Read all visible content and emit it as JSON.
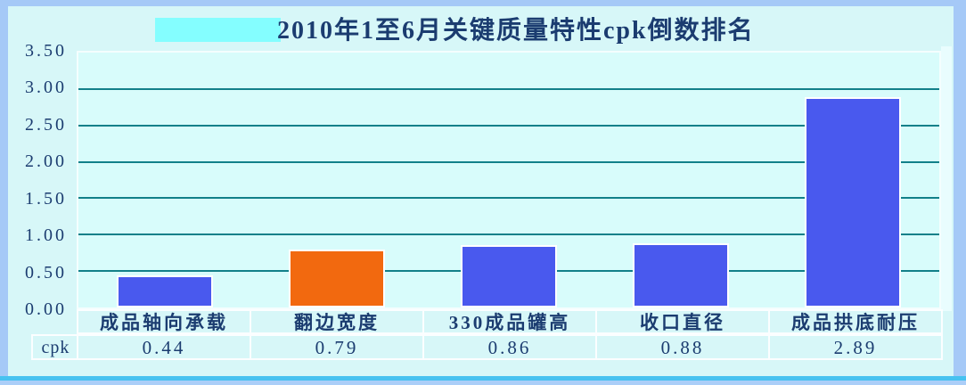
{
  "window": {
    "frame_color": "#a5c9f7",
    "canvas_color": "#d7f7f8",
    "bottom_accent_color": "#47c2f0",
    "title_highlight_color": "#84feff"
  },
  "chart_data": {
    "type": "bar",
    "title": "2010年1至6月关键质量特性cpk倒数排名",
    "categories": [
      "成品轴向承载",
      "翻边宽度",
      "330成品罐高",
      "收口直径",
      "成品拱底耐压"
    ],
    "values": [
      0.44,
      0.79,
      0.86,
      0.88,
      2.89
    ],
    "value_labels": [
      "0.44",
      "0.79",
      "0.86",
      "0.88",
      "2.89"
    ],
    "series_name": "cpk",
    "ylim": [
      0,
      3.5
    ],
    "ytick_step": 0.5,
    "yticks": [
      "3.50",
      "3.00",
      "2.50",
      "2.00",
      "1.50",
      "1.00",
      "0.50",
      "0.00"
    ],
    "grid": true,
    "gridline_color": "#128089",
    "plot_background": "#d8fcfb",
    "bar_colors": [
      "#4959ee",
      "#f2690f",
      "#4959ee",
      "#4959ee",
      "#4959ee"
    ],
    "text_color": "#1b3c70",
    "data_table": {
      "row_header": "cpk",
      "cells": [
        "0.44",
        "0.79",
        "0.86",
        "0.88",
        "2.89"
      ]
    }
  }
}
